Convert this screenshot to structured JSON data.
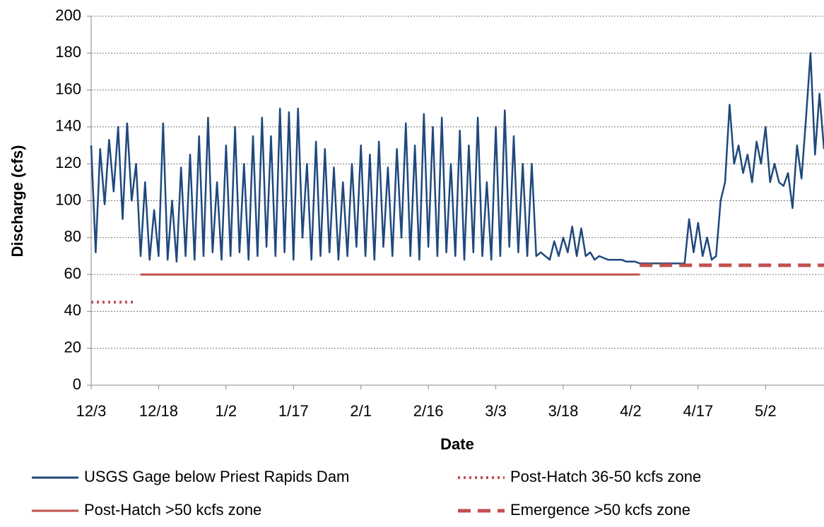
{
  "chart_data": {
    "type": "line",
    "xlabel": "Date",
    "ylabel": "Discharge (cfs)",
    "xlim": [
      "12/3",
      "5/15"
    ],
    "xticks": [
      "12/3",
      "12/18",
      "1/2",
      "1/17",
      "2/1",
      "2/16",
      "3/3",
      "3/18",
      "4/2",
      "4/17",
      "5/2"
    ],
    "ylim": [
      0,
      200
    ],
    "yticks": [
      0,
      20,
      40,
      60,
      80,
      100,
      120,
      140,
      160,
      180,
      200
    ],
    "grid": true,
    "legend": "bottom",
    "series": [
      {
        "name": "USGS Gage below Priest Rapids Dam",
        "color": "#1f497d",
        "style": "solid",
        "x": [
          "12/3",
          "12/4",
          "12/5",
          "12/6",
          "12/7",
          "12/8",
          "12/9",
          "12/10",
          "12/11",
          "12/12",
          "12/13",
          "12/14",
          "12/15",
          "12/16",
          "12/17",
          "12/18",
          "12/19",
          "12/20",
          "12/21",
          "12/22",
          "12/23",
          "12/24",
          "12/25",
          "12/26",
          "12/27",
          "12/28",
          "12/29",
          "12/30",
          "12/31",
          "1/1",
          "1/2",
          "1/3",
          "1/4",
          "1/5",
          "1/6",
          "1/7",
          "1/8",
          "1/9",
          "1/10",
          "1/11",
          "1/12",
          "1/13",
          "1/14",
          "1/15",
          "1/16",
          "1/17",
          "1/18",
          "1/19",
          "1/20",
          "1/21",
          "1/22",
          "1/23",
          "1/24",
          "1/25",
          "1/26",
          "1/27",
          "1/28",
          "1/29",
          "1/30",
          "1/31",
          "2/1",
          "2/2",
          "2/3",
          "2/4",
          "2/5",
          "2/6",
          "2/7",
          "2/8",
          "2/9",
          "2/10",
          "2/11",
          "2/12",
          "2/13",
          "2/14",
          "2/15",
          "2/16",
          "2/17",
          "2/18",
          "2/19",
          "2/20",
          "2/21",
          "2/22",
          "2/23",
          "2/24",
          "2/25",
          "2/26",
          "2/27",
          "2/28",
          "3/1",
          "3/2",
          "3/3",
          "3/4",
          "3/5",
          "3/6",
          "3/7",
          "3/8",
          "3/9",
          "3/10",
          "3/11",
          "3/12",
          "3/13",
          "3/14",
          "3/15",
          "3/16",
          "3/17",
          "3/18",
          "3/19",
          "3/20",
          "3/21",
          "3/22",
          "3/23",
          "3/24",
          "3/25",
          "3/26",
          "3/27",
          "3/28",
          "3/29",
          "3/30",
          "3/31",
          "4/1",
          "4/2",
          "4/3",
          "4/4",
          "4/5",
          "4/6",
          "4/7",
          "4/8",
          "4/9",
          "4/10",
          "4/11",
          "4/12",
          "4/13",
          "4/14",
          "4/15",
          "4/16",
          "4/17",
          "4/18",
          "4/19",
          "4/20",
          "4/21",
          "4/22",
          "4/23",
          "4/24",
          "4/25",
          "4/26",
          "4/27",
          "4/28",
          "4/29",
          "4/30",
          "5/1",
          "5/2",
          "5/3",
          "5/4",
          "5/5",
          "5/6",
          "5/7",
          "5/8",
          "5/9",
          "5/10",
          "5/11",
          "5/12",
          "5/13",
          "5/14",
          "5/15"
        ],
        "values": [
          130,
          72,
          128,
          98,
          133,
          105,
          140,
          90,
          142,
          100,
          120,
          70,
          110,
          68,
          95,
          70,
          142,
          68,
          100,
          67,
          118,
          70,
          125,
          68,
          135,
          70,
          145,
          72,
          110,
          68,
          130,
          70,
          140,
          72,
          120,
          68,
          135,
          70,
          145,
          75,
          135,
          70,
          150,
          72,
          148,
          68,
          150,
          80,
          120,
          68,
          132,
          70,
          128,
          72,
          118,
          68,
          110,
          70,
          120,
          75,
          130,
          70,
          125,
          68,
          132,
          75,
          118,
          70,
          128,
          80,
          142,
          70,
          130,
          68,
          147,
          75,
          140,
          70,
          145,
          72,
          120,
          70,
          138,
          68,
          130,
          72,
          145,
          70,
          110,
          68,
          140,
          70,
          149,
          75,
          135,
          72,
          120,
          70,
          120,
          70,
          72,
          70,
          68,
          78,
          70,
          80,
          72,
          86,
          70,
          85,
          70,
          72,
          68,
          70,
          69,
          68,
          68,
          68,
          68,
          67,
          67,
          67,
          66,
          66,
          66,
          66,
          66,
          66,
          66,
          66,
          66,
          66,
          66,
          90,
          72,
          88,
          70,
          80,
          68,
          70,
          100,
          110,
          152,
          120,
          130,
          115,
          125,
          110,
          132,
          120,
          140,
          110,
          120,
          110,
          108,
          115,
          96,
          130,
          112,
          145,
          180,
          125,
          158,
          128
        ]
      },
      {
        "name": "Post-Hatch 36-50 kcfs zone",
        "color": "#c0504d",
        "style": "dotted",
        "x": [
          "12/3",
          "12/13"
        ],
        "values": [
          45,
          45
        ]
      },
      {
        "name": "Post-Hatch >50 kcfs zone",
        "color": "#c0504d",
        "style": "solid",
        "x": [
          "12/14",
          "4/4"
        ],
        "values": [
          60,
          60
        ]
      },
      {
        "name": "Emergence >50 kcfs zone",
        "color": "#c0504d",
        "style": "dashed",
        "x": [
          "4/4",
          "5/15"
        ],
        "values": [
          65,
          65
        ]
      }
    ]
  }
}
